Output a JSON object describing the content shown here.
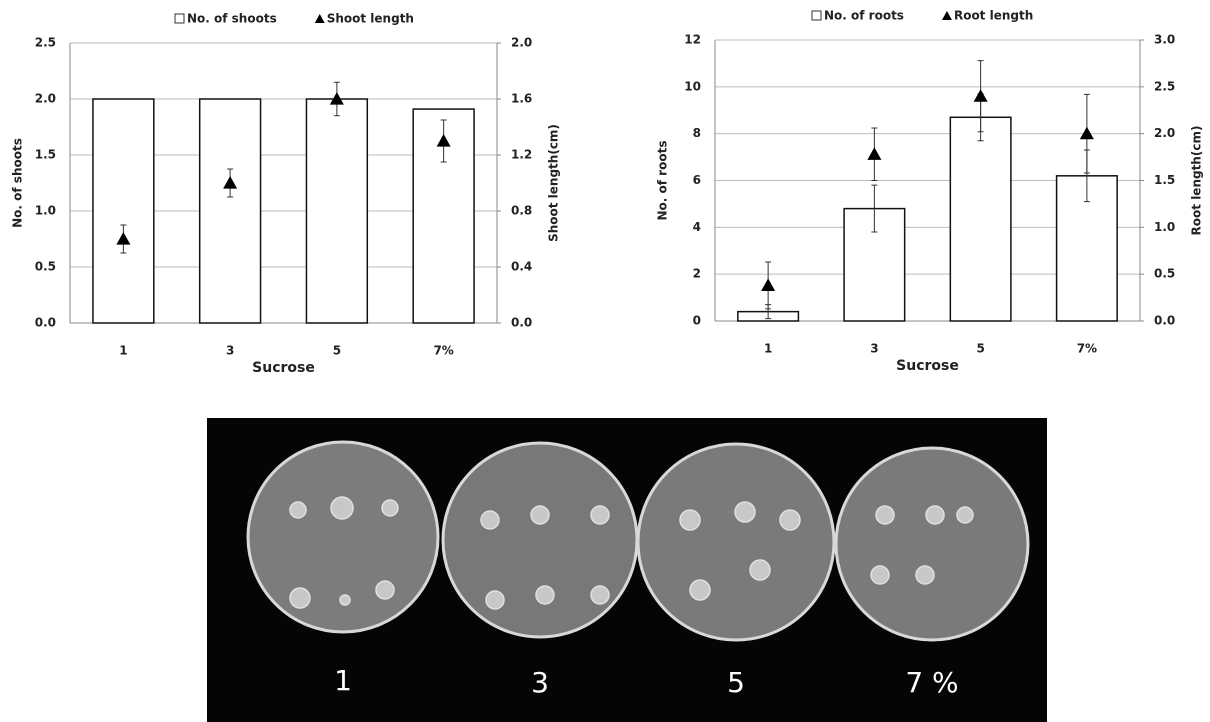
{
  "chart_data": [
    {
      "type": "bar",
      "xlabel": "Sucrose",
      "ylabel": "No. of shoots",
      "y2label": "Shoot length(cm)",
      "categories": [
        "1",
        "3",
        "5",
        "7%"
      ],
      "ylim": [
        0,
        2.5
      ],
      "yticks": [
        {
          "value": 0,
          "label": "0.0"
        },
        {
          "value": 0.5,
          "label": "0.5"
        },
        {
          "value": 1,
          "label": "1.0"
        },
        {
          "value": 1.5,
          "label": "1.5"
        },
        {
          "value": 2,
          "label": "2.0"
        },
        {
          "value": 2.5,
          "label": "2.5"
        }
      ],
      "y2lim": [
        0,
        2
      ],
      "y2ticks": [
        {
          "value": 0,
          "label": "0.0"
        },
        {
          "value": 0.4,
          "label": "0.4"
        },
        {
          "value": 0.8,
          "label": "0.8"
        },
        {
          "value": 1.2,
          "label": "1.2"
        },
        {
          "value": 1.6,
          "label": "1.6"
        },
        {
          "value": 2,
          "label": "2.0"
        }
      ],
      "grid": true,
      "series": [
        {
          "name": "No. of shoots",
          "type": "bar",
          "color": "#ffffff",
          "values": [
            2.0,
            2.0,
            2.0,
            1.91
          ]
        },
        {
          "name": "Shoot length",
          "type": "scatter",
          "marker": "triangle",
          "color": "#000000",
          "axis": "y2",
          "values": [
            0.6,
            1.0,
            1.6,
            1.3
          ],
          "errors": [
            0.1,
            0.1,
            0.12,
            0.15
          ]
        }
      ]
    },
    {
      "type": "bar",
      "xlabel": "Sucrose",
      "ylabel": "No. of roots",
      "y2label": "Root length(cm)",
      "categories": [
        "1",
        "3",
        "5",
        "7%"
      ],
      "ylim": [
        0,
        12
      ],
      "yticks": [
        0,
        2,
        4,
        6,
        8,
        10,
        12
      ],
      "y2lim": [
        0,
        3
      ],
      "y2ticks": [
        {
          "value": 0,
          "label": "0.0"
        },
        {
          "value": 0.5,
          "label": "0.5"
        },
        {
          "value": 1,
          "label": "1.0"
        },
        {
          "value": 1.5,
          "label": "1.5"
        },
        {
          "value": 2,
          "label": "2.0"
        },
        {
          "value": 2.5,
          "label": "2.5"
        },
        {
          "value": 3,
          "label": "3.0"
        }
      ],
      "grid": true,
      "series": [
        {
          "name": "No. of roots",
          "type": "bar",
          "color": "#ffffff",
          "values": [
            0.4,
            4.8,
            8.7,
            6.2
          ],
          "errors": [
            0.3,
            1.0,
            1.0,
            1.1
          ]
        },
        {
          "name": "Root length",
          "type": "scatter",
          "marker": "triangle",
          "color": "#000000",
          "axis": "y2",
          "values": [
            0.38,
            1.78,
            2.4,
            2.0
          ],
          "errors": [
            0.25,
            0.28,
            0.38,
            0.42
          ]
        }
      ]
    }
  ],
  "photo": {
    "labels": [
      "1",
      "3",
      "5",
      "7 %"
    ]
  }
}
